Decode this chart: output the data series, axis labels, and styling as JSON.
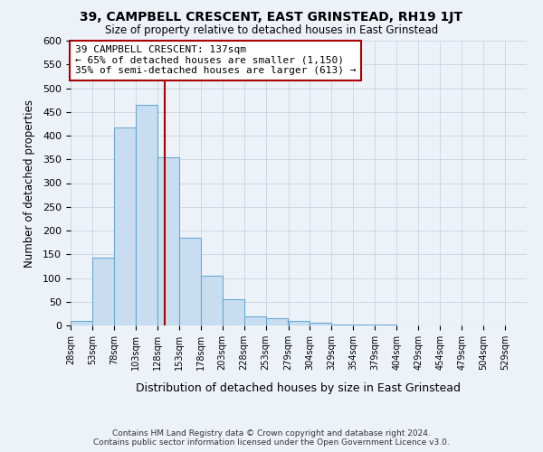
{
  "title": "39, CAMPBELL CRESCENT, EAST GRINSTEAD, RH19 1JT",
  "subtitle": "Size of property relative to detached houses in East Grinstead",
  "xlabel": "Distribution of detached houses by size in East Grinstead",
  "ylabel": "Number of detached properties",
  "bins": [
    28,
    53,
    78,
    103,
    128,
    153,
    178,
    203,
    228,
    253,
    279,
    304,
    329,
    354,
    379,
    404,
    429,
    454,
    479,
    504,
    529
  ],
  "bin_counts": [
    10,
    143,
    418,
    465,
    355,
    185,
    105,
    55,
    20,
    15,
    10,
    5,
    2,
    1,
    1,
    0,
    0,
    0,
    0,
    0
  ],
  "property_size": 137,
  "bar_facecolor": "#c8ddf0",
  "bar_edgecolor": "#6aaad4",
  "vline_color": "#aa0000",
  "annotation_line1": "39 CAMPBELL CRESCENT: 137sqm",
  "annotation_line2": "← 65% of detached houses are smaller (1,150)",
  "annotation_line3": "35% of semi-detached houses are larger (613) →",
  "annotation_box_color": "white",
  "annotation_box_edgecolor": "#aa0000",
  "grid_color": "#c8d4e0",
  "background_color": "#edf2f9",
  "ylim": [
    0,
    600
  ],
  "yticks": [
    0,
    50,
    100,
    150,
    200,
    250,
    300,
    350,
    400,
    450,
    500,
    550,
    600
  ],
  "footnote1": "Contains HM Land Registry data © Crown copyright and database right 2024.",
  "footnote2": "Contains public sector information licensed under the Open Government Licence v3.0."
}
